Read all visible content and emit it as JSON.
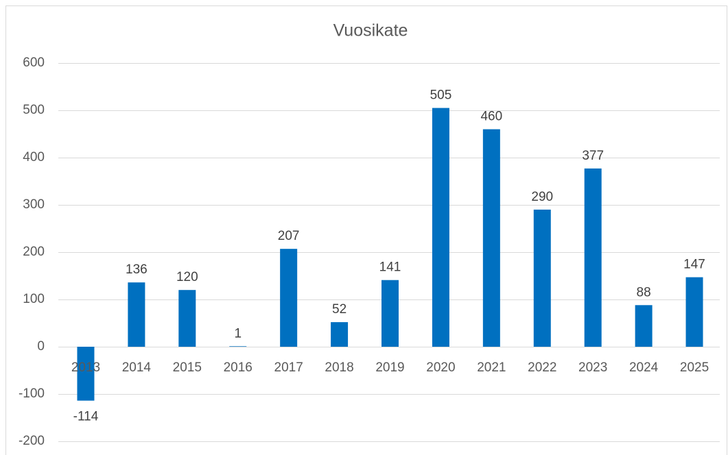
{
  "chart_data": {
    "type": "bar",
    "title": "Vuosikate",
    "categories": [
      "2013",
      "2014",
      "2015",
      "2016",
      "2017",
      "2018",
      "2019",
      "2020",
      "2021",
      "2022",
      "2023",
      "2024",
      "2025"
    ],
    "values": [
      -114,
      136,
      120,
      1,
      207,
      52,
      141,
      505,
      460,
      290,
      377,
      88,
      147
    ],
    "color": "#0070c0",
    "ylim": [
      -200,
      600
    ],
    "yticks": [
      -200,
      -100,
      0,
      100,
      200,
      300,
      400,
      500,
      600
    ],
    "grid": true
  }
}
